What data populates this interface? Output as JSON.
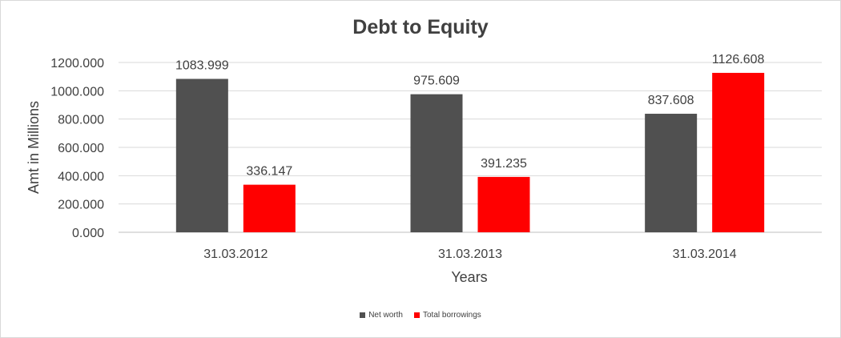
{
  "chart_data": {
    "type": "bar",
    "title": "Debt to Equity",
    "xlabel": "Years",
    "ylabel": "Amt in Millions",
    "categories": [
      "31.03.2012",
      "31.03.2013",
      "31.03.2014"
    ],
    "series": [
      {
        "name": "Net worth",
        "color": "#505050",
        "values": [
          1083.999,
          975.609,
          837.608
        ],
        "labels": [
          "1083.999",
          "975.609",
          "837.608"
        ]
      },
      {
        "name": "Total borrowings",
        "color": "#ff0000",
        "values": [
          336.147,
          391.235,
          1126.608
        ],
        "labels": [
          "336.147",
          "391.235",
          "1126.608"
        ]
      }
    ],
    "ylim": [
      0,
      1200
    ],
    "yticks": [
      0,
      200,
      400,
      600,
      800,
      1000,
      1200
    ],
    "ytick_labels": [
      "0.000",
      "200.000",
      "400.000",
      "600.000",
      "800.000",
      "1000.000",
      "1200.000"
    ],
    "grid": true,
    "legend_position": "bottom"
  }
}
